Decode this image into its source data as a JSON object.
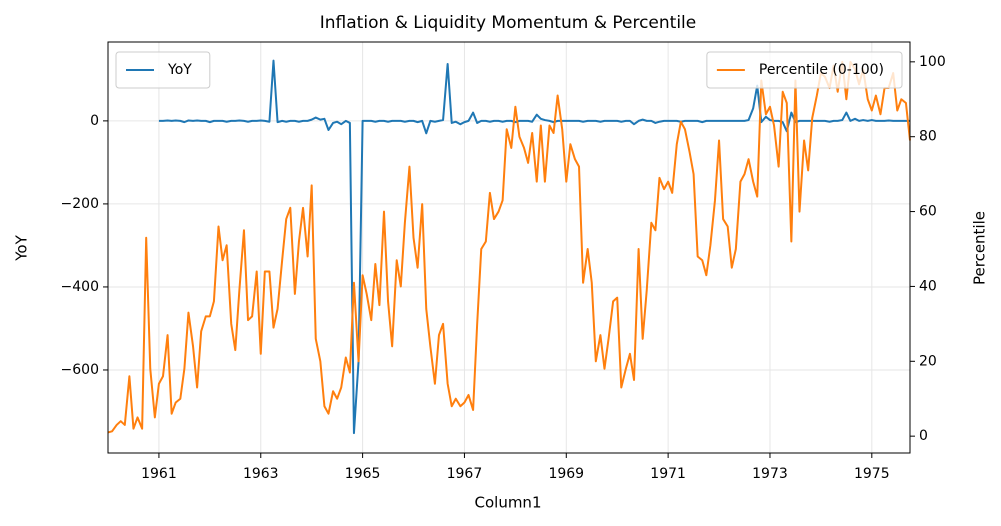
{
  "chart_data": {
    "type": "line",
    "title": "Inflation & Liquidity Momentum & Percentile",
    "x_label": "Column1",
    "y_label": "YoY",
    "y2_label": "Percentile",
    "xlim": [
      1960,
      1975.75
    ],
    "xticks": [
      1961,
      1963,
      1965,
      1967,
      1969,
      1971,
      1973,
      1975
    ],
    "ylim": [
      -800,
      190
    ],
    "yticks": [
      {
        "value": -600,
        "label": "−600"
      },
      {
        "value": -400,
        "label": "−400"
      },
      {
        "value": -200,
        "label": "−200"
      },
      0
    ],
    "y2lim": [
      -4.5,
      105.3
    ],
    "y2ticks": [
      0,
      20,
      40,
      60,
      80,
      100
    ],
    "grid": true,
    "x": [
      1960,
      1960.08,
      1960.17,
      1960.25,
      1960.33,
      1960.42,
      1960.5,
      1960.58,
      1960.67,
      1960.75,
      1960.83,
      1960.92,
      1961,
      1961.08,
      1961.17,
      1961.25,
      1961.33,
      1961.42,
      1961.5,
      1961.58,
      1961.67,
      1961.75,
      1961.83,
      1961.92,
      1962,
      1962.08,
      1962.17,
      1962.25,
      1962.33,
      1962.42,
      1962.5,
      1962.58,
      1962.67,
      1962.75,
      1962.83,
      1962.92,
      1963,
      1963.08,
      1963.17,
      1963.25,
      1963.33,
      1963.42,
      1963.5,
      1963.58,
      1963.67,
      1963.75,
      1963.83,
      1963.92,
      1964,
      1964.08,
      1964.17,
      1964.25,
      1964.33,
      1964.42,
      1964.5,
      1964.58,
      1964.67,
      1964.75,
      1964.83,
      1964.92,
      1965,
      1965.08,
      1965.17,
      1965.25,
      1965.33,
      1965.42,
      1965.5,
      1965.58,
      1965.67,
      1965.75,
      1965.83,
      1965.92,
      1966,
      1966.08,
      1966.17,
      1966.25,
      1966.33,
      1966.42,
      1966.5,
      1966.58,
      1966.67,
      1966.75,
      1966.83,
      1966.92,
      1967,
      1967.08,
      1967.17,
      1967.25,
      1967.33,
      1967.42,
      1967.5,
      1967.58,
      1967.67,
      1967.75,
      1967.83,
      1967.92,
      1968,
      1968.08,
      1968.17,
      1968.25,
      1968.33,
      1968.42,
      1968.5,
      1968.58,
      1968.67,
      1968.75,
      1968.83,
      1968.92,
      1969,
      1969.08,
      1969.17,
      1969.25,
      1969.33,
      1969.42,
      1969.5,
      1969.58,
      1969.67,
      1969.75,
      1969.83,
      1969.92,
      1970,
      1970.08,
      1970.17,
      1970.25,
      1970.33,
      1970.42,
      1970.5,
      1970.58,
      1970.67,
      1970.75,
      1970.83,
      1970.92,
      1971,
      1971.08,
      1971.17,
      1971.25,
      1971.33,
      1971.42,
      1971.5,
      1971.58,
      1971.67,
      1971.75,
      1971.83,
      1971.92,
      1972,
      1972.08,
      1972.17,
      1972.25,
      1972.33,
      1972.42,
      1972.5,
      1972.58,
      1972.67,
      1972.75,
      1972.83,
      1972.92,
      1973,
      1973.08,
      1973.17,
      1973.25,
      1973.33,
      1973.42,
      1973.5,
      1973.58,
      1973.67,
      1973.75,
      1973.83,
      1973.92,
      1974,
      1974.08,
      1974.17,
      1974.25,
      1974.33,
      1974.42,
      1974.5,
      1974.58,
      1974.67,
      1974.75,
      1974.83,
      1974.92,
      1975,
      1975.08,
      1975.17,
      1975.25,
      1975.33,
      1975.42,
      1975.5,
      1975.58,
      1975.67,
      1975.75
    ],
    "series": [
      {
        "name": "YoY",
        "color": "#1f77b4",
        "axis": "y",
        "legend": "upper left",
        "values": [
          null,
          null,
          null,
          null,
          null,
          null,
          null,
          null,
          null,
          null,
          null,
          null,
          0,
          0,
          1,
          0,
          1,
          0,
          -3,
          1,
          0,
          1,
          0,
          0,
          -3,
          0,
          0,
          0,
          -2,
          0,
          0,
          1,
          0,
          -2,
          0,
          0,
          1,
          0,
          -2,
          145,
          -3,
          0,
          -2,
          0,
          0,
          -2,
          0,
          0,
          3,
          8,
          3,
          5,
          -22,
          -5,
          -2,
          -8,
          0,
          -5,
          -752,
          -580,
          0,
          0,
          0,
          -2,
          0,
          0,
          -2,
          0,
          0,
          0,
          -2,
          0,
          0,
          -3,
          0,
          -30,
          0,
          -2,
          0,
          2,
          137,
          -5,
          -2,
          -8,
          -3,
          0,
          20,
          -5,
          0,
          0,
          -2,
          0,
          0,
          -2,
          0,
          0,
          -3,
          0,
          0,
          0,
          -2,
          15,
          5,
          2,
          0,
          -3,
          0,
          0,
          0,
          0,
          0,
          0,
          -2,
          0,
          0,
          0,
          -2,
          0,
          0,
          0,
          0,
          -2,
          0,
          0,
          -8,
          0,
          3,
          0,
          0,
          -5,
          -2,
          0,
          0,
          0,
          0,
          -2,
          0,
          0,
          0,
          0,
          -3,
          0,
          0,
          0,
          0,
          0,
          0,
          0,
          0,
          0,
          0,
          2,
          30,
          85,
          -3,
          10,
          2,
          0,
          0,
          -3,
          -25,
          20,
          -3,
          0,
          0,
          0,
          0,
          0,
          0,
          0,
          -2,
          0,
          0,
          2,
          20,
          0,
          5,
          0,
          2,
          0,
          2,
          0,
          0,
          0,
          1,
          0,
          0,
          0,
          0,
          0
        ]
      },
      {
        "name": "Percentile (0-100)",
        "color": "#ff7f0e",
        "axis": "y2",
        "legend": "upper right",
        "values": [
          1,
          1.3,
          3,
          4,
          3,
          16,
          2,
          5,
          2,
          53,
          18,
          5,
          14,
          16,
          27,
          6,
          9,
          10,
          18,
          33,
          24,
          13,
          28,
          32,
          32,
          36,
          56,
          47,
          51,
          30,
          23,
          39,
          55,
          31,
          32,
          44,
          22,
          44,
          44,
          29,
          34,
          47,
          58,
          61,
          38,
          52,
          61,
          48,
          67,
          26,
          20,
          8,
          6,
          12,
          10,
          13,
          21,
          17,
          41,
          20,
          43,
          38,
          31,
          46,
          35,
          60,
          36,
          24,
          47,
          40,
          57,
          72,
          53,
          45,
          62,
          34,
          24,
          14,
          27,
          30,
          14,
          8,
          10,
          8,
          9,
          11,
          7,
          30,
          50,
          52,
          65,
          58,
          60,
          63,
          82,
          77,
          88,
          80,
          77,
          73,
          81,
          68,
          83,
          68,
          83,
          81,
          91,
          82,
          68,
          78,
          74,
          72,
          41,
          50,
          41,
          20,
          27,
          18,
          26,
          36,
          37,
          13,
          18,
          22,
          15,
          50,
          26,
          39,
          57,
          55,
          69,
          66,
          68,
          65,
          78,
          84,
          82,
          76,
          70,
          48,
          47,
          43,
          51,
          63,
          79,
          58,
          56,
          45,
          50,
          68,
          70,
          74,
          68,
          64,
          95,
          86,
          88,
          83,
          72,
          92,
          89,
          52,
          95,
          60,
          79,
          71,
          85,
          91,
          97,
          96,
          93,
          99,
          92,
          100,
          90,
          100,
          98,
          94,
          98,
          90,
          87,
          91,
          86,
          93,
          93,
          97,
          87,
          90,
          89,
          79
        ]
      }
    ]
  }
}
